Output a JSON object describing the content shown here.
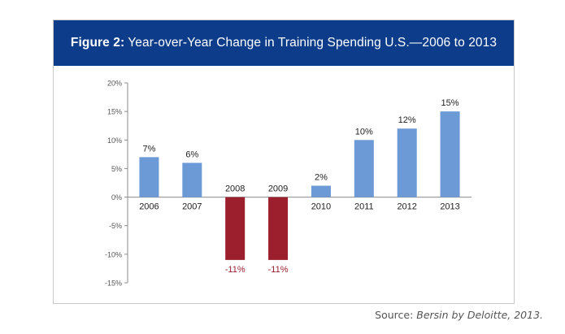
{
  "figure": {
    "label": "Figure 2:",
    "title": "Year-over-Year Change in Training Spending U.S.—2006 to 2013"
  },
  "source": {
    "prefix": "Source: ",
    "text": "Bersin by Deloitte, 2013."
  },
  "colors": {
    "header": "#0d3d8a",
    "positive": "#6b9ad6",
    "negative": "#9b1f2c",
    "negative_label": "#9b1f2c"
  },
  "chart_data": {
    "type": "bar",
    "title": "Year-over-Year Change in Training Spending U.S.—2006 to 2013",
    "categories": [
      "2006",
      "2007",
      "2008",
      "2009",
      "2010",
      "2011",
      "2012",
      "2013"
    ],
    "values": [
      7,
      6,
      -11,
      -11,
      2,
      10,
      12,
      15
    ],
    "data_labels": [
      "7%",
      "6%",
      "-11%",
      "-11%",
      "2%",
      "10%",
      "12%",
      "15%"
    ],
    "yticks": [
      20,
      15,
      10,
      5,
      0,
      -5,
      -10,
      -15
    ],
    "ytick_labels": [
      "20%",
      "15%",
      "10%",
      "5%",
      "0%",
      "-5%",
      "-10%",
      "-15%"
    ],
    "ylim": [
      -15,
      20
    ],
    "xlabel": "",
    "ylabel": "",
    "grid": false
  }
}
